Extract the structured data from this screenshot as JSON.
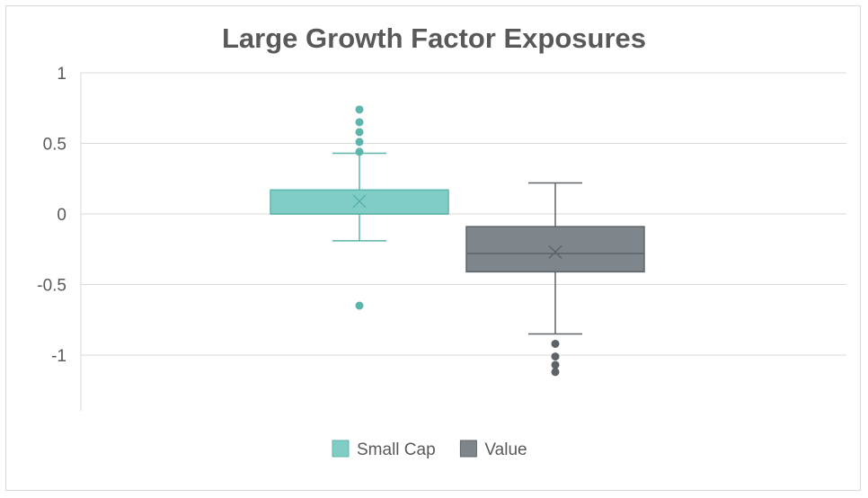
{
  "chart_data": {
    "type": "box",
    "title": "Large Growth Factor Exposures",
    "xlabel": "",
    "ylabel": "",
    "ylim": [
      -1.4,
      1
    ],
    "yticks": [
      1,
      0.5,
      0,
      -0.5,
      -1
    ],
    "ytick_labels": [
      "1",
      "0.5",
      "0",
      "-0.5",
      "-1"
    ],
    "grid": true,
    "legend_position": "bottom",
    "series": [
      {
        "name": "Small Cap",
        "color": "#7fcdc4",
        "edge_color": "#5bb5aa",
        "whisker_low": -0.19,
        "q1": 0.0,
        "median": 0.0,
        "q3": 0.17,
        "whisker_high": 0.43,
        "mean": 0.09,
        "outliers": [
          0.74,
          0.65,
          0.58,
          0.51,
          0.44,
          -0.65
        ]
      },
      {
        "name": "Value",
        "color": "#7f868b",
        "edge_color": "#5d6469",
        "whisker_low": -0.85,
        "q1": -0.41,
        "median": -0.28,
        "q3": -0.09,
        "whisker_high": 0.22,
        "mean": -0.27,
        "outliers": [
          -0.92,
          -1.01,
          -1.07,
          -1.12
        ]
      }
    ]
  }
}
